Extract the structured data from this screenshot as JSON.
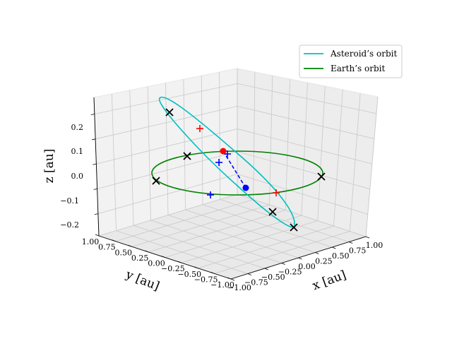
{
  "chart_data": {
    "type": "scatter",
    "title": "",
    "xlabel": "x [au]",
    "ylabel": "y [au]",
    "zlabel": "z [au]",
    "xlim": [
      -1.0,
      1.0
    ],
    "ylim": [
      -1.0,
      1.0
    ],
    "zlim": [
      -0.25,
      0.25
    ],
    "x_ticks": [
      "−1.00",
      "−0.75",
      "−0.50",
      "−0.25",
      "0.00",
      "0.25",
      "0.50",
      "0.75",
      "1.00"
    ],
    "y_ticks": [
      "1.00",
      "0.75",
      "0.50",
      "0.25",
      "0.00",
      "−0.25",
      "−0.50",
      "−0.75",
      "−1.00"
    ],
    "z_ticks": [
      "0.2",
      "0.1",
      "0.0",
      "−0.1",
      "−0.2"
    ],
    "grid": true,
    "legend_position": "top-right",
    "colors": {
      "asteroid_orbit": "#00bfbf",
      "earth_orbit": "#008000",
      "x_markers": "#000000",
      "red_markers": "#ff0000",
      "blue_markers": "#0000ff"
    },
    "series": [
      {
        "name": "Asteroid’s orbit"
      },
      {
        "name": "Earth’s orbit"
      }
    ]
  }
}
